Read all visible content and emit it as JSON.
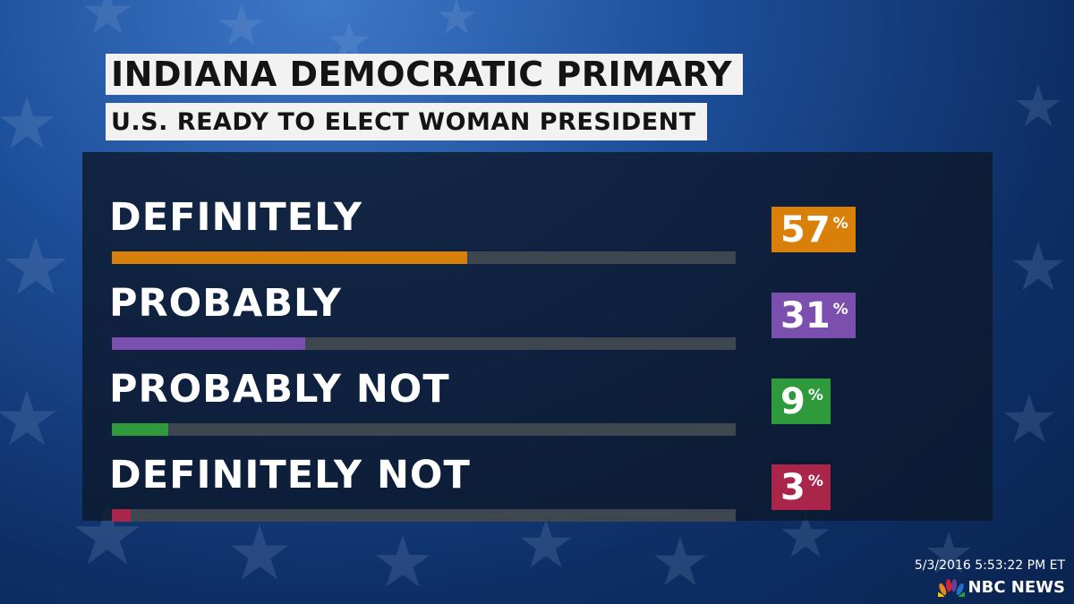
{
  "header": {
    "title": "INDIANA DEMOCRATIC PRIMARY",
    "subtitle": "U.S. READY TO ELECT WOMAN PRESIDENT"
  },
  "chart_data": {
    "type": "bar",
    "title": "INDIANA DEMOCRATIC PRIMARY",
    "subtitle": "U.S. READY TO ELECT WOMAN PRESIDENT",
    "orientation": "horizontal",
    "categories": [
      "DEFINITELY",
      "PROBABLY",
      "PROBABLY NOT",
      "DEFINITELY NOT"
    ],
    "values": [
      57,
      31,
      9,
      3
    ],
    "value_labels": [
      "57",
      "31",
      "9",
      "3"
    ],
    "unit_symbol": "%",
    "colors": [
      "#d9800b",
      "#7b4fae",
      "#2f9a3c",
      "#a9264a"
    ],
    "track_color": "#3e4650",
    "ylim": [
      0,
      100
    ],
    "grid": false,
    "legend": "none"
  },
  "footer": {
    "timestamp": "5/3/2016 5:53:22 PM ET",
    "brand": "NBC NEWS",
    "logo_icon": "peacock-icon"
  }
}
